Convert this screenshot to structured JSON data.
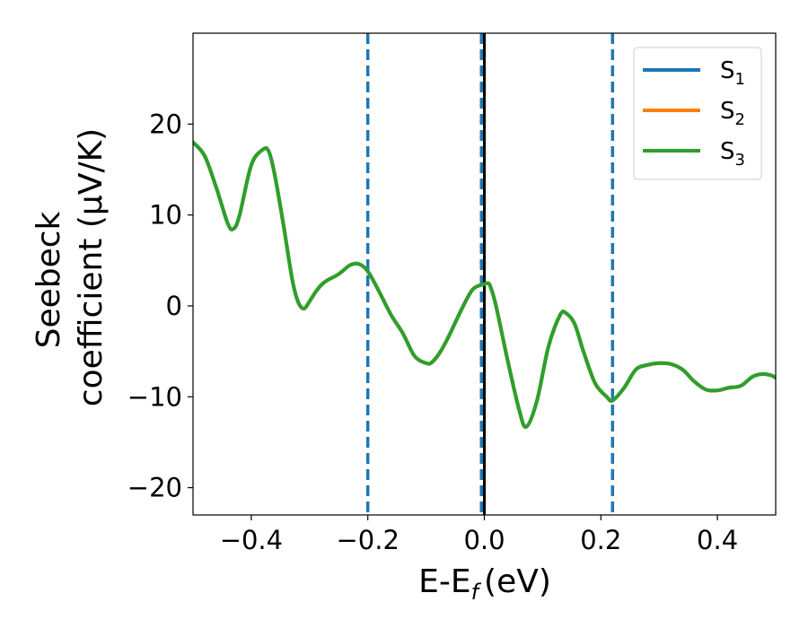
{
  "chart_data": {
    "type": "line",
    "xlabel": "E-E",
    "xlabel_sub": "f",
    "xlabel_unit": "(eV)",
    "ylabel_line1": "Seebeck",
    "ylabel_line2": "coefficient  (μV/K)",
    "xlim": [
      -0.5,
      0.5
    ],
    "ylim": [
      -23,
      30
    ],
    "xticks": [
      -0.4,
      -0.2,
      0.0,
      0.2,
      0.4
    ],
    "xtick_labels": [
      "−0.4",
      "−0.2",
      "0.0",
      "0.2",
      "0.4"
    ],
    "yticks": [
      -20,
      -10,
      0,
      10,
      20
    ],
    "ytick_labels": [
      "−20",
      "−10",
      "0",
      "10",
      "20"
    ],
    "grid": false,
    "legend_position": "top-right",
    "vertical_lines": [
      {
        "x": -0.2,
        "style": "dashed",
        "color": "#1f77b4"
      },
      {
        "x": -0.005,
        "style": "dashed",
        "color": "#1f77b4"
      },
      {
        "x": 0.22,
        "style": "dashed",
        "color": "#1f77b4"
      },
      {
        "x": 0.0,
        "style": "solid",
        "color": "#000000"
      }
    ],
    "series": [
      {
        "name": "S",
        "sub": "1",
        "color": "#1f77b4",
        "x": [
          -0.5,
          -0.48,
          -0.46,
          -0.44,
          -0.43,
          -0.42,
          -0.4,
          -0.38,
          -0.37,
          -0.36,
          -0.345,
          -0.33,
          -0.32,
          -0.31,
          -0.3,
          -0.29,
          -0.28,
          -0.27,
          -0.25,
          -0.23,
          -0.215,
          -0.2,
          -0.18,
          -0.16,
          -0.14,
          -0.12,
          -0.1,
          -0.09,
          -0.075,
          -0.06,
          -0.04,
          -0.02,
          0.0,
          0.005,
          0.01,
          0.02,
          0.04,
          0.06,
          0.072,
          0.09,
          0.11,
          0.13,
          0.14,
          0.155,
          0.17,
          0.19,
          0.21,
          0.22,
          0.24,
          0.26,
          0.28,
          0.3,
          0.32,
          0.34,
          0.36,
          0.38,
          0.4,
          0.42,
          0.44,
          0.46,
          0.475,
          0.49,
          0.5
        ],
        "values": [
          18,
          16.5,
          13,
          9,
          8.5,
          10,
          15.5,
          17.2,
          17,
          14.5,
          9,
          3,
          0.5,
          -0.3,
          0.5,
          1.5,
          2.3,
          2.8,
          3.5,
          4.5,
          4.6,
          3.8,
          1.5,
          -1,
          -3,
          -5.5,
          -6.3,
          -6.2,
          -5,
          -3.2,
          -0.5,
          1.8,
          2.4,
          2.5,
          2.2,
          0,
          -6,
          -11.5,
          -13.3,
          -10.5,
          -4.5,
          -1,
          -0.8,
          -2,
          -5,
          -8.5,
          -10,
          -10.4,
          -9,
          -7,
          -6.5,
          -6.3,
          -6.4,
          -7,
          -8.3,
          -9.2,
          -9.3,
          -9,
          -8.8,
          -7.8,
          -7.5,
          -7.6,
          -7.9
        ]
      },
      {
        "name": "S",
        "sub": "2",
        "color": "#ff7f0e",
        "x": [
          -0.5,
          -0.48,
          -0.46,
          -0.44,
          -0.43,
          -0.42,
          -0.4,
          -0.38,
          -0.37,
          -0.36,
          -0.345,
          -0.33,
          -0.32,
          -0.31,
          -0.3,
          -0.29,
          -0.28,
          -0.27,
          -0.25,
          -0.23,
          -0.215,
          -0.2,
          -0.18,
          -0.16,
          -0.14,
          -0.12,
          -0.1,
          -0.09,
          -0.075,
          -0.06,
          -0.04,
          -0.02,
          0.0,
          0.005,
          0.01,
          0.02,
          0.04,
          0.06,
          0.072,
          0.09,
          0.11,
          0.13,
          0.14,
          0.155,
          0.17,
          0.19,
          0.21,
          0.22,
          0.24,
          0.26,
          0.28,
          0.3,
          0.32,
          0.34,
          0.36,
          0.38,
          0.4,
          0.42,
          0.44,
          0.46,
          0.475,
          0.49,
          0.5
        ],
        "values": [
          18,
          16.5,
          13,
          9,
          8.5,
          10,
          15.5,
          17.2,
          17,
          14.5,
          9,
          3,
          0.5,
          -0.3,
          0.5,
          1.5,
          2.3,
          2.8,
          3.5,
          4.5,
          4.6,
          3.8,
          1.5,
          -1,
          -3,
          -5.5,
          -6.3,
          -6.2,
          -5,
          -3.2,
          -0.5,
          1.8,
          2.4,
          2.5,
          2.2,
          0,
          -6,
          -11.5,
          -13.3,
          -10.5,
          -4.5,
          -1,
          -0.8,
          -2,
          -5,
          -8.5,
          -10,
          -10.4,
          -9,
          -7,
          -6.5,
          -6.3,
          -6.4,
          -7,
          -8.3,
          -9.2,
          -9.3,
          -9,
          -8.8,
          -7.8,
          -7.5,
          -7.6,
          -7.9
        ]
      },
      {
        "name": "S",
        "sub": "3",
        "color": "#2ca02c",
        "x": [
          -0.5,
          -0.48,
          -0.46,
          -0.44,
          -0.43,
          -0.42,
          -0.4,
          -0.38,
          -0.37,
          -0.36,
          -0.345,
          -0.33,
          -0.32,
          -0.31,
          -0.3,
          -0.29,
          -0.28,
          -0.27,
          -0.25,
          -0.23,
          -0.215,
          -0.2,
          -0.18,
          -0.16,
          -0.14,
          -0.12,
          -0.1,
          -0.09,
          -0.075,
          -0.06,
          -0.04,
          -0.02,
          0.0,
          0.005,
          0.01,
          0.02,
          0.04,
          0.06,
          0.072,
          0.09,
          0.11,
          0.13,
          0.14,
          0.155,
          0.17,
          0.19,
          0.21,
          0.22,
          0.24,
          0.26,
          0.28,
          0.3,
          0.32,
          0.34,
          0.36,
          0.38,
          0.4,
          0.42,
          0.44,
          0.46,
          0.475,
          0.49,
          0.5
        ],
        "values": [
          18,
          16.5,
          13,
          9,
          8.5,
          10,
          15.5,
          17.2,
          17,
          14.5,
          9,
          3,
          0.5,
          -0.3,
          0.5,
          1.5,
          2.3,
          2.8,
          3.5,
          4.5,
          4.6,
          3.8,
          1.5,
          -1,
          -3,
          -5.5,
          -6.3,
          -6.2,
          -5,
          -3.2,
          -0.5,
          1.8,
          2.4,
          2.5,
          2.2,
          0,
          -6,
          -11.5,
          -13.3,
          -10.5,
          -4.5,
          -1,
          -0.8,
          -2,
          -5,
          -8.5,
          -10,
          -10.4,
          -9,
          -7,
          -6.5,
          -6.3,
          -6.4,
          -7,
          -8.3,
          -9.2,
          -9.3,
          -9,
          -8.8,
          -7.8,
          -7.5,
          -7.6,
          -7.9
        ]
      }
    ]
  }
}
